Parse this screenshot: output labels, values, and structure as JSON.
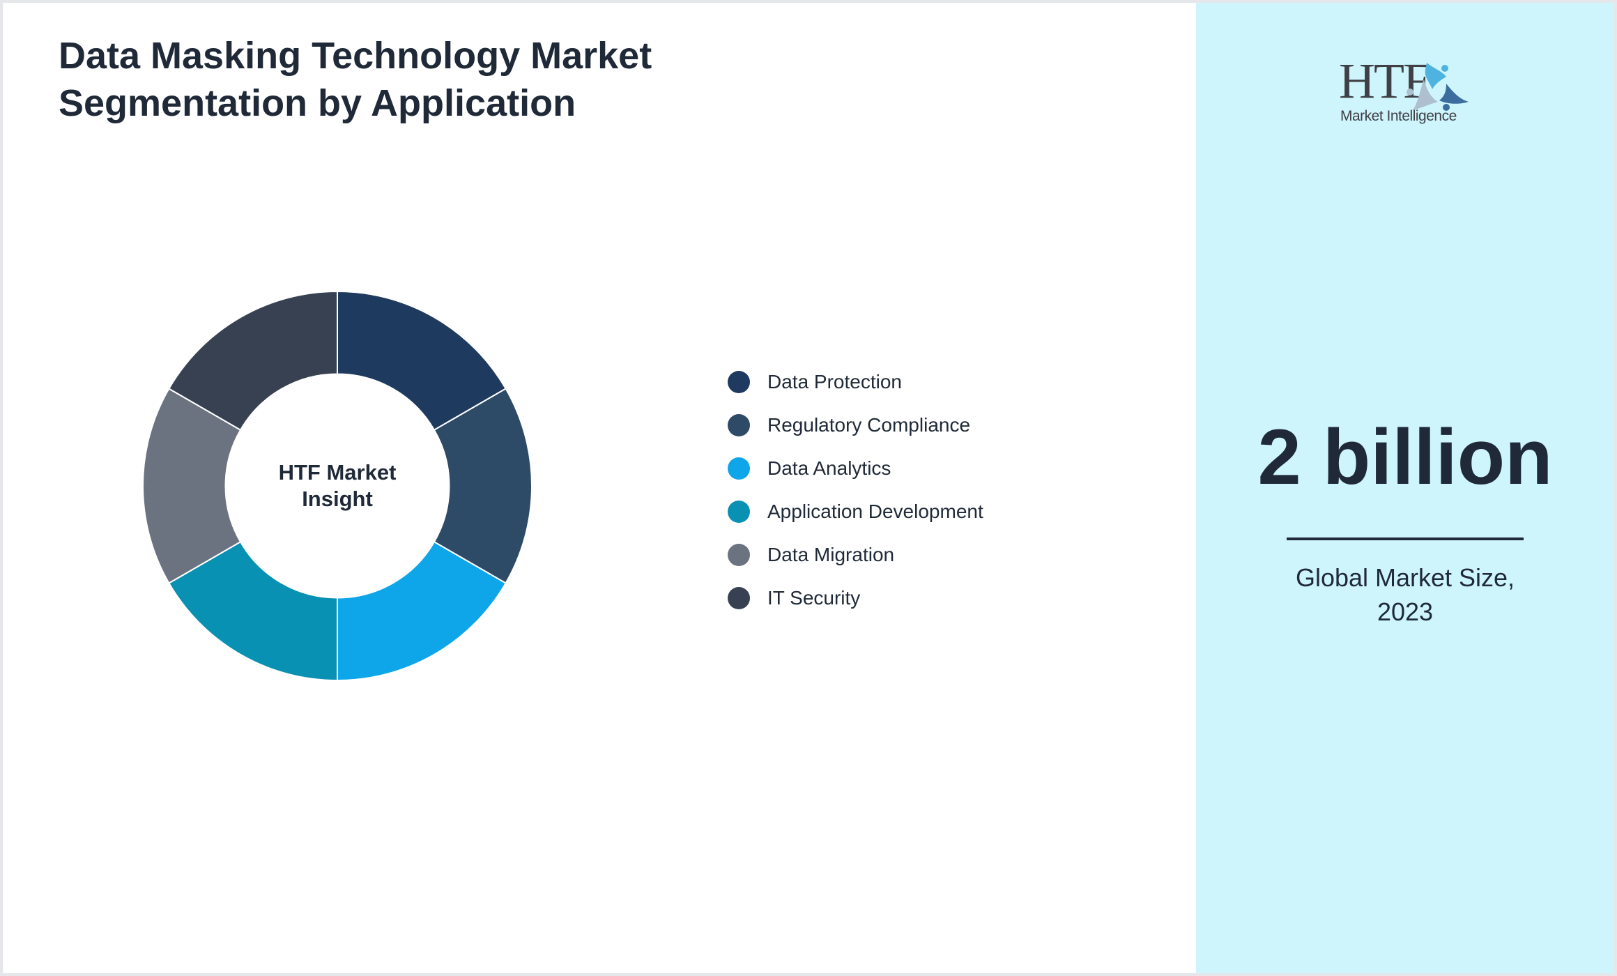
{
  "header": {
    "title": "Data Masking Technology Market Segmentation by Application"
  },
  "donut": {
    "center_label": "HTF Market Insight"
  },
  "legend": [
    {
      "label": "Data Protection",
      "color": "#1e3a5f"
    },
    {
      "label": "Regulatory Compliance",
      "color": "#2d4a66"
    },
    {
      "label": "Data Analytics",
      "color": "#0ea5e9"
    },
    {
      "label": "Application Development",
      "color": "#0891b2"
    },
    {
      "label": "Data Migration",
      "color": "#6b7280"
    },
    {
      "label": "IT Security",
      "color": "#374151"
    }
  ],
  "sidebar": {
    "logo_text": "HTF",
    "logo_subtext": "Market Intelligence",
    "metric_value": "2 billion",
    "metric_caption": "Global Market Size, 2023",
    "background": "#cff5fc"
  },
  "chart_data": {
    "type": "pie",
    "subtype": "donut",
    "title": "Data Masking Technology Market Segmentation by Application",
    "center_text": "HTF Market Insight",
    "categories": [
      "Data Protection",
      "Regulatory Compliance",
      "Data Analytics",
      "Application Development",
      "Data Migration",
      "IT Security"
    ],
    "values": [
      16.67,
      16.67,
      16.67,
      16.67,
      16.67,
      16.67
    ],
    "colors": [
      "#1e3a5f",
      "#2d4a66",
      "#0ea5e9",
      "#0891b2",
      "#6b7280",
      "#374151"
    ],
    "start_angle_deg": 0,
    "direction": "clockwise",
    "legend_position": "right",
    "annotation": {
      "value": "2 billion",
      "label": "Global Market Size, 2023"
    }
  }
}
